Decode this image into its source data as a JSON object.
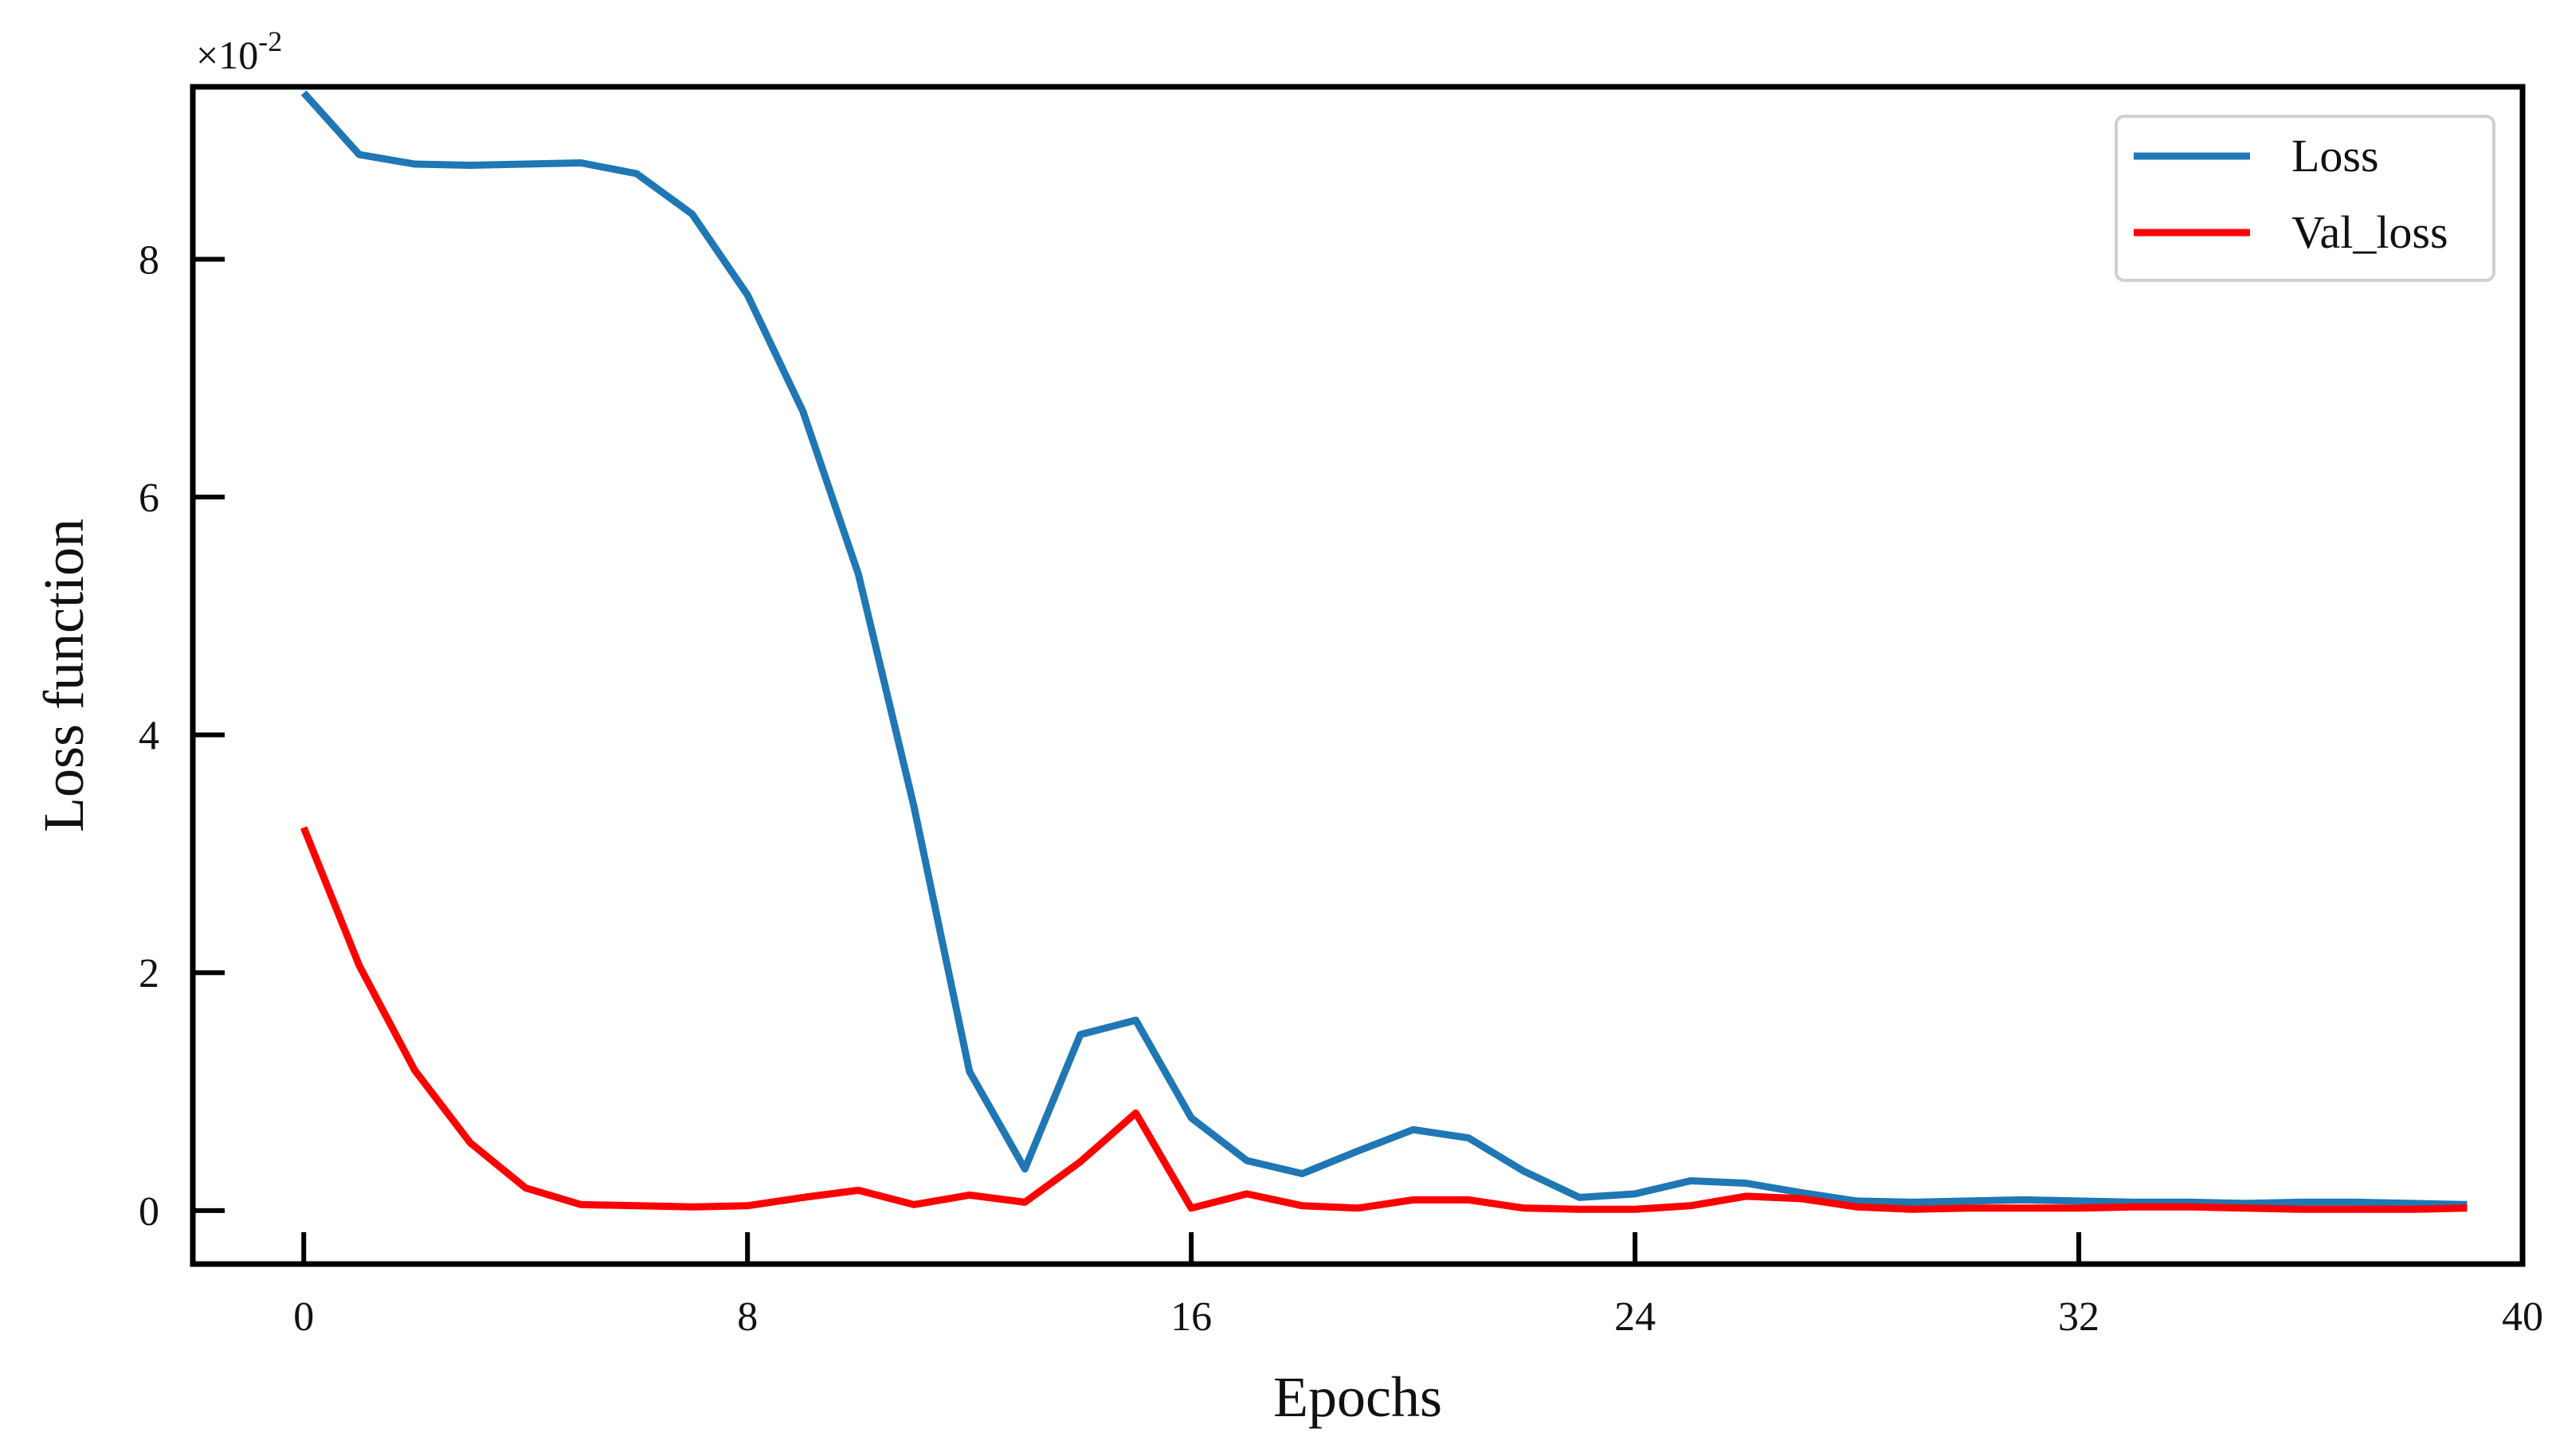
{
  "chart_data": {
    "type": "line",
    "xlabel": "Epochs",
    "ylabel": "Loss function",
    "y_scale_prefix": "×10",
    "y_scale_exponent": "-2",
    "xlim": [
      -2,
      40
    ],
    "ylim": [
      -0.45,
      9.45
    ],
    "x_ticks": [
      0,
      8,
      16,
      24,
      32,
      40
    ],
    "y_ticks": [
      0,
      2,
      4,
      6,
      8
    ],
    "grid": false,
    "legend_position": "top-right",
    "x": [
      0,
      1,
      2,
      3,
      4,
      5,
      6,
      7,
      8,
      9,
      10,
      11,
      12,
      13,
      14,
      15,
      16,
      17,
      18,
      19,
      20,
      21,
      22,
      23,
      24,
      25,
      26,
      27,
      28,
      29,
      30,
      31,
      32,
      33,
      34,
      35,
      36,
      37,
      38,
      39
    ],
    "series": [
      {
        "name": "Loss",
        "color": "#1f77b4",
        "values": [
          9.4,
          8.88,
          8.8,
          8.79,
          8.8,
          8.81,
          8.72,
          8.38,
          7.7,
          6.72,
          5.35,
          3.4,
          1.17,
          0.35,
          1.48,
          1.6,
          0.78,
          0.42,
          0.31,
          0.5,
          0.68,
          0.61,
          0.33,
          0.11,
          0.14,
          0.25,
          0.23,
          0.15,
          0.08,
          0.07,
          0.08,
          0.09,
          0.08,
          0.07,
          0.07,
          0.06,
          0.07,
          0.07,
          0.06,
          0.05
        ]
      },
      {
        "name": "Val_loss",
        "color": "#ff0000",
        "values": [
          3.22,
          2.06,
          1.18,
          0.57,
          0.19,
          0.05,
          0.04,
          0.03,
          0.04,
          0.11,
          0.17,
          0.05,
          0.13,
          0.07,
          0.41,
          0.82,
          0.02,
          0.14,
          0.04,
          0.02,
          0.09,
          0.09,
          0.02,
          0.01,
          0.01,
          0.04,
          0.12,
          0.1,
          0.03,
          0.01,
          0.02,
          0.02,
          0.02,
          0.03,
          0.03,
          0.02,
          0.01,
          0.01,
          0.01,
          0.02
        ]
      }
    ]
  }
}
